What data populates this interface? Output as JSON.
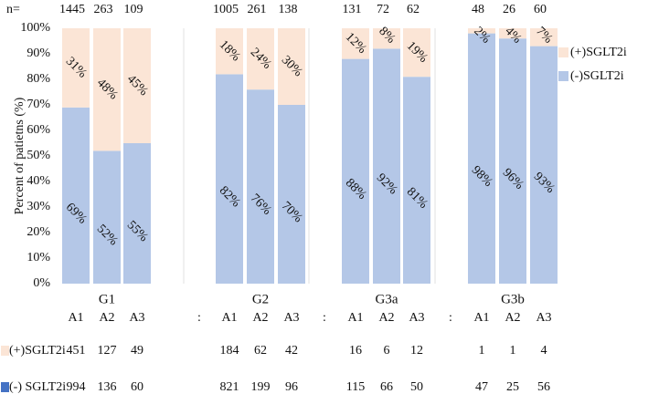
{
  "chart_data": {
    "type": "bar",
    "stacked": true,
    "percent_stacked": true,
    "ylabel": "Percent of patietns (%)",
    "ylim": [
      0,
      100
    ],
    "yticks": [
      "0%",
      "10%",
      "20%",
      "30%",
      "40%",
      "50%",
      "60%",
      "70%",
      "80%",
      "90%",
      "100%"
    ],
    "n_label": "n=",
    "groups": [
      "G1",
      "G2",
      "G3a",
      "G3b"
    ],
    "subgroups": [
      "A1",
      "A2",
      "A3"
    ],
    "separator": ":",
    "n": [
      1445,
      263,
      109,
      1005,
      261,
      138,
      131,
      72,
      62,
      48,
      26,
      60
    ],
    "series": [
      {
        "name": "(-)SGLT2i",
        "color": "#b4c7e7",
        "values": [
          69,
          52,
          55,
          82,
          76,
          70,
          88,
          92,
          81,
          98,
          96,
          93
        ],
        "labels": [
          "69%",
          "52%",
          "55%",
          "82%",
          "76%",
          "70%",
          "88%",
          "92%",
          "81%",
          "98%",
          "96%",
          "93%"
        ]
      },
      {
        "name": "(+)SGLT2i",
        "color": "#fbe5d6",
        "values": [
          31,
          48,
          45,
          18,
          24,
          30,
          12,
          8,
          19,
          2,
          4,
          7
        ],
        "labels": [
          "31%",
          "48%",
          "45%",
          "18%",
          "24%",
          "30%",
          "12%",
          "8%",
          "19%",
          "2%",
          "4%",
          "7%"
        ]
      }
    ],
    "count_table": [
      {
        "label": "(+)SGLT2i",
        "color": "#fbe5d6",
        "values": [
          451,
          127,
          49,
          184,
          62,
          42,
          16,
          6,
          12,
          1,
          1,
          4
        ]
      },
      {
        "label": "(-) SGLT2i",
        "color": "#4472c4",
        "values": [
          994,
          136,
          60,
          821,
          199,
          96,
          115,
          66,
          50,
          47,
          25,
          56
        ]
      }
    ],
    "legend_position": "right",
    "grid": false
  }
}
